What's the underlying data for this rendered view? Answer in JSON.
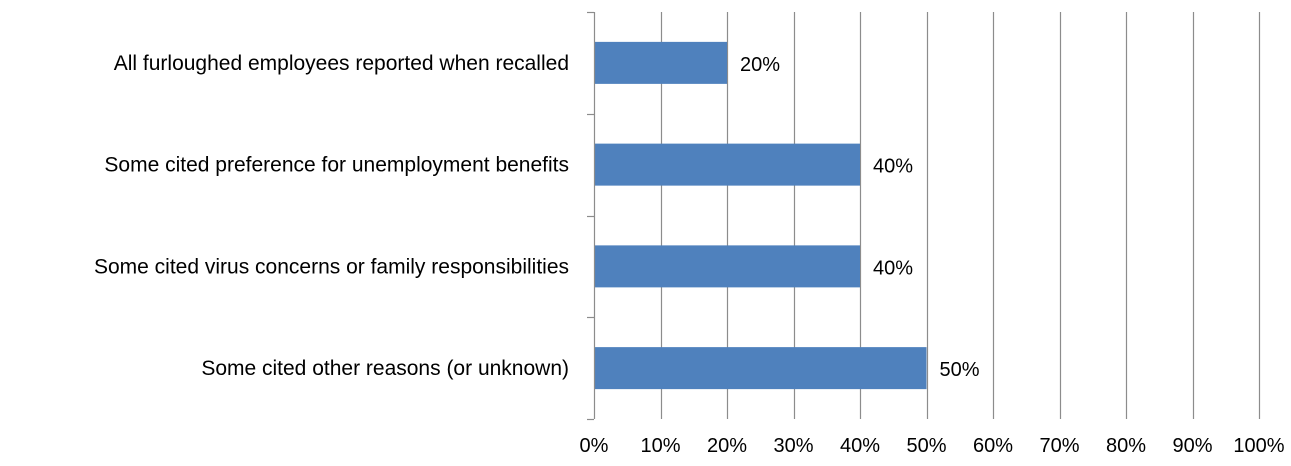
{
  "chart_data": {
    "type": "bar",
    "orientation": "horizontal",
    "categories": [
      "All furloughed employees reported when recalled",
      "Some cited preference for unemployment benefits",
      "Some cited virus concerns or family responsibilities",
      "Some cited other reasons (or unknown)"
    ],
    "values": [
      20,
      40,
      40,
      50
    ],
    "data_labels": [
      "20%",
      "40%",
      "40%",
      "50%"
    ],
    "x_ticks": [
      "0%",
      "10%",
      "20%",
      "30%",
      "40%",
      "50%",
      "60%",
      "70%",
      "80%",
      "90%",
      "100%"
    ],
    "xlim": [
      0,
      100
    ],
    "grid": "vertical",
    "legend": "none",
    "colors": {
      "bar": "#4f81bd",
      "grid": "#8c8c8c",
      "axis": "#8c8c8c",
      "text": "#000000"
    }
  }
}
